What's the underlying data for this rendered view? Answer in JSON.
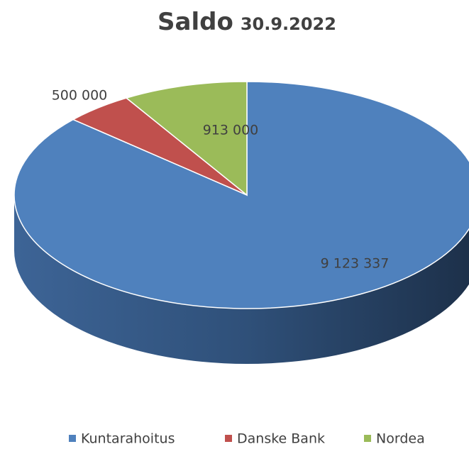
{
  "chart_data": {
    "type": "pie",
    "title": "Saldo",
    "subtitle": "30.9.2022",
    "categories": [
      "Kuntarahoitus",
      "Danske Bank",
      "Nordea"
    ],
    "values": [
      9123337,
      500000,
      913000
    ],
    "value_labels": [
      "9 123 337",
      "500 000",
      "913 000"
    ],
    "colors": [
      "#4f81bd",
      "#c0504d",
      "#9bbb59"
    ],
    "legend": "bottom"
  }
}
